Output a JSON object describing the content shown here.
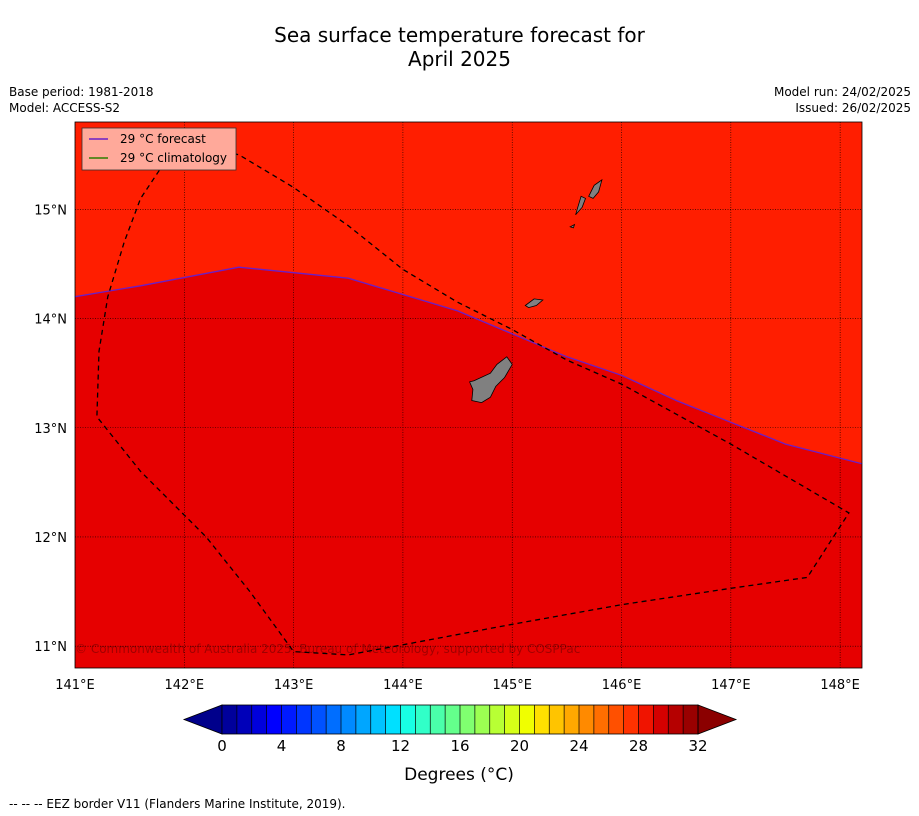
{
  "title": {
    "line1": "Sea surface temperature forecast for",
    "line2": "April 2025"
  },
  "meta": {
    "base_period": "Base period: 1981-2018",
    "model": "Model: ACCESS-S2",
    "model_run": "Model run: 24/02/2025",
    "issued": "Issued: 26/02/2025"
  },
  "map": {
    "lon_range": [
      141,
      148.2
    ],
    "lat_range": [
      10.8,
      15.8
    ],
    "lon_ticks": [
      {
        "value": 141,
        "label": "141°E"
      },
      {
        "value": 142,
        "label": "142°E"
      },
      {
        "value": 143,
        "label": "143°E"
      },
      {
        "value": 144,
        "label": "144°E"
      },
      {
        "value": 145,
        "label": "145°E"
      },
      {
        "value": 146,
        "label": "146°E"
      },
      {
        "value": 147,
        "label": "147°E"
      },
      {
        "value": 148,
        "label": "148°E"
      }
    ],
    "lat_ticks": [
      {
        "value": 15,
        "label": "15°N"
      },
      {
        "value": 14,
        "label": "14°N"
      },
      {
        "value": 13,
        "label": "13°N"
      },
      {
        "value": 12,
        "label": "12°N"
      },
      {
        "value": 11,
        "label": "11°N"
      }
    ],
    "fields": {
      "warm_color": "#ff1e00",
      "cool_color": "#e60000",
      "land_color": "#808080"
    },
    "isotherm_29c": [
      [
        141,
        14.2
      ],
      [
        141.6,
        14.3
      ],
      [
        142.5,
        14.47
      ],
      [
        143.5,
        14.37
      ],
      [
        144.5,
        14.07
      ],
      [
        145.5,
        13.65
      ],
      [
        146,
        13.48
      ],
      [
        146.5,
        13.25
      ],
      [
        147,
        13.05
      ],
      [
        147.5,
        12.85
      ],
      [
        148.2,
        12.67
      ]
    ],
    "eez_border": [
      [
        142.1,
        15.6
      ],
      [
        141.8,
        15.4
      ],
      [
        141.6,
        15.1
      ],
      [
        141.45,
        14.7
      ],
      [
        141.3,
        14.2
      ],
      [
        141.22,
        13.7
      ],
      [
        141.2,
        13.1
      ],
      [
        141.6,
        12.6
      ],
      [
        142.2,
        12.0
      ],
      [
        142.6,
        11.5
      ],
      [
        143.0,
        10.95
      ],
      [
        143.5,
        10.92
      ],
      [
        144.2,
        11.05
      ],
      [
        145.0,
        11.2
      ],
      [
        146.0,
        11.38
      ],
      [
        147.0,
        11.53
      ],
      [
        147.7,
        11.63
      ],
      [
        148.08,
        12.22
      ],
      [
        147.0,
        12.85
      ],
      [
        146.0,
        13.4
      ],
      [
        145.5,
        13.62
      ],
      [
        145.0,
        13.9
      ],
      [
        144.5,
        14.15
      ],
      [
        144.0,
        14.45
      ],
      [
        143.5,
        14.85
      ],
      [
        143.0,
        15.2
      ],
      [
        142.5,
        15.5
      ],
      [
        142.1,
        15.6
      ]
    ],
    "islands": [
      [
        [
          144.65,
          13.43
        ],
        [
          144.8,
          13.5
        ],
        [
          144.86,
          13.58
        ],
        [
          144.95,
          13.65
        ],
        [
          145.0,
          13.58
        ],
        [
          144.93,
          13.46
        ],
        [
          144.85,
          13.38
        ],
        [
          144.8,
          13.28
        ],
        [
          144.72,
          13.23
        ],
        [
          144.63,
          13.25
        ],
        [
          144.64,
          13.35
        ],
        [
          144.61,
          13.42
        ]
      ],
      [
        [
          145.12,
          14.12
        ],
        [
          145.2,
          14.18
        ],
        [
          145.28,
          14.17
        ],
        [
          145.22,
          14.12
        ],
        [
          145.15,
          14.1
        ]
      ],
      [
        [
          145.58,
          14.95
        ],
        [
          145.64,
          15.02
        ],
        [
          145.67,
          15.1
        ],
        [
          145.63,
          15.12
        ],
        [
          145.6,
          15.02
        ]
      ],
      [
        [
          145.7,
          15.12
        ],
        [
          145.75,
          15.22
        ],
        [
          145.82,
          15.27
        ],
        [
          145.79,
          15.16
        ],
        [
          145.74,
          15.1
        ]
      ],
      [
        [
          145.53,
          14.84
        ],
        [
          145.57,
          14.86
        ],
        [
          145.56,
          14.83
        ]
      ]
    ],
    "copyright": "© Commonwealth of Australia 2025, Bureau of Meteorology, supported by COSPPac"
  },
  "legend": {
    "forecast": {
      "label": "29 °C  forecast",
      "color": "#6a1fc8"
    },
    "climatology": {
      "label": "29 °C  climatology",
      "color": "#2e7d00"
    },
    "background": "#ffa99a"
  },
  "colorbar": {
    "title": "Degrees ($^\\circ$C)",
    "title_display": "Degrees (°C)",
    "ticks": [
      "0",
      "4",
      "8",
      "12",
      "16",
      "20",
      "24",
      "28",
      "32"
    ],
    "under_color": "#00008b",
    "over_color": "#8b0000",
    "colors": [
      "#00009b",
      "#0000b9",
      "#0000dc",
      "#0000ff",
      "#001aff",
      "#0036ff",
      "#0052ff",
      "#006eff",
      "#008aff",
      "#00a6ff",
      "#00c2ff",
      "#00e0ff",
      "#18ffe5",
      "#31ffc8",
      "#4affaa",
      "#64ff8c",
      "#80ff70",
      "#9cff52",
      "#b8ff34",
      "#d6ff18",
      "#f0ff00",
      "#ffe000",
      "#ffc400",
      "#ffa800",
      "#ff8a00",
      "#ff6e00",
      "#ff5000",
      "#ff3200",
      "#f01400",
      "#d40000",
      "#b50000",
      "#990000"
    ]
  },
  "footnote": "--  --  -- EEZ border V11 (Flanders Marine Institute, 2019)."
}
